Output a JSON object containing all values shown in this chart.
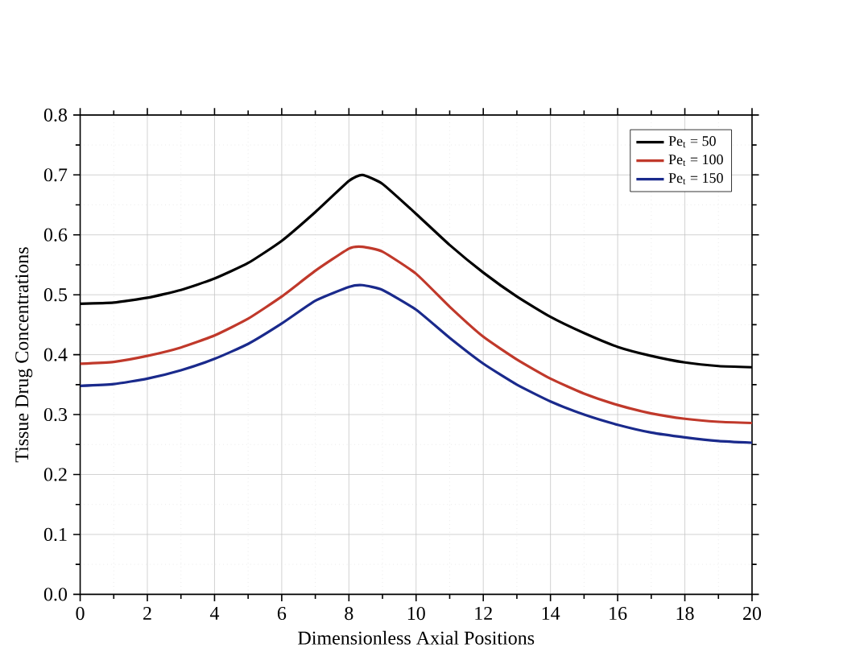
{
  "chart_data": {
    "type": "line",
    "xlabel": "Dimensionless Axial Positions",
    "ylabel": "Tissue Drug Concentrations",
    "x": [
      0,
      1,
      2,
      3,
      4,
      5,
      6,
      7,
      8,
      8.4,
      9,
      10,
      11,
      12,
      13,
      14,
      15,
      16,
      17,
      18,
      19,
      20
    ],
    "series": [
      {
        "name": "Pe$_{t}$ = 50",
        "color": "#000000",
        "values": [
          0.485,
          0.487,
          0.495,
          0.508,
          0.527,
          0.553,
          0.59,
          0.638,
          0.69,
          0.7,
          0.685,
          0.635,
          0.583,
          0.537,
          0.497,
          0.463,
          0.436,
          0.413,
          0.398,
          0.387,
          0.381,
          0.379
        ]
      },
      {
        "name": "Pe$_{t}$ = 100",
        "color": "#c0392b",
        "values": [
          0.385,
          0.388,
          0.398,
          0.412,
          0.432,
          0.46,
          0.497,
          0.54,
          0.577,
          0.58,
          0.572,
          0.535,
          0.48,
          0.43,
          0.392,
          0.36,
          0.335,
          0.316,
          0.302,
          0.293,
          0.288,
          0.286
        ]
      },
      {
        "name": "Pe$_{t}$ = 150",
        "color": "#1a2a8c",
        "values": [
          0.348,
          0.351,
          0.36,
          0.374,
          0.393,
          0.418,
          0.452,
          0.49,
          0.513,
          0.516,
          0.508,
          0.475,
          0.428,
          0.385,
          0.35,
          0.322,
          0.3,
          0.283,
          0.27,
          0.262,
          0.256,
          0.253
        ]
      }
    ],
    "xlim": [
      0,
      20
    ],
    "ylim": [
      0,
      0.8
    ],
    "xticks": [
      0,
      2,
      4,
      6,
      8,
      10,
      12,
      14,
      16,
      18,
      20
    ],
    "yticks": [
      {
        "value": 0,
        "label": "0.0"
      },
      {
        "value": 0.1,
        "label": "0.1"
      },
      {
        "value": 0.2,
        "label": "0.2"
      },
      {
        "value": 0.3,
        "label": "0.3"
      },
      {
        "value": 0.4,
        "label": "0.4"
      },
      {
        "value": 0.5,
        "label": "0.5"
      },
      {
        "value": 0.6,
        "label": "0.6"
      },
      {
        "value": 0.7,
        "label": "0.7"
      },
      {
        "value": 0.8,
        "label": "0.8"
      }
    ],
    "grid": true,
    "legend": "top right",
    "marker": "none",
    "line_style": "solid"
  }
}
